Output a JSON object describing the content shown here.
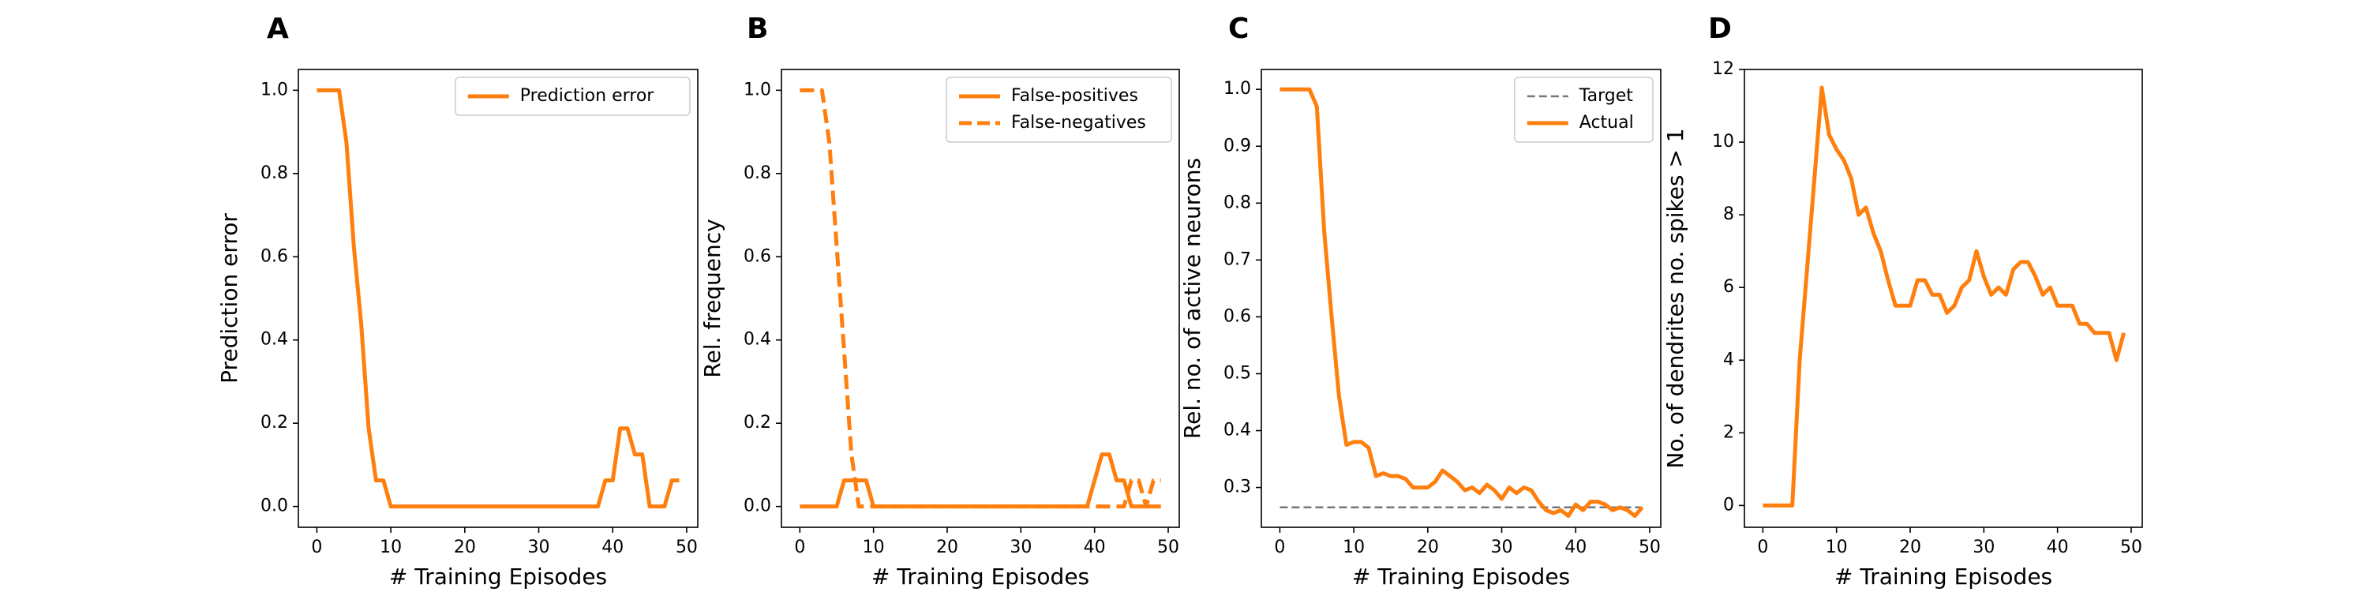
{
  "chart_data": [
    {
      "type": "line",
      "panel": "A",
      "xlabel": "# Training Episodes",
      "ylabel": "Prediction error",
      "xlim": [
        -2.5,
        51.5
      ],
      "ylim": [
        -0.05,
        1.05
      ],
      "xticks": [
        0,
        10,
        20,
        30,
        40,
        50
      ],
      "yticks": [
        0.0,
        0.2,
        0.4,
        0.6,
        0.8,
        1.0
      ],
      "ytick_labels": [
        "0.0",
        "0.2",
        "0.4",
        "0.6",
        "0.8",
        "1.0"
      ],
      "legend": "top-right",
      "series": [
        {
          "name": "Prediction error",
          "color": "#ff7f0e",
          "style": "solid",
          "x": [
            0,
            1,
            2,
            3,
            4,
            5,
            6,
            7,
            8,
            9,
            10,
            11,
            12,
            13,
            14,
            15,
            16,
            17,
            18,
            19,
            20,
            21,
            22,
            23,
            24,
            25,
            26,
            27,
            28,
            29,
            30,
            31,
            32,
            33,
            34,
            35,
            36,
            37,
            38,
            39,
            40,
            41,
            42,
            43,
            44,
            45,
            46,
            47,
            48,
            49
          ],
          "y": [
            1.0,
            1.0,
            1.0,
            1.0,
            0.875,
            0.625,
            0.4375,
            0.1875,
            0.0625,
            0.0625,
            0.0,
            0,
            0,
            0,
            0,
            0,
            0,
            0,
            0,
            0,
            0,
            0,
            0,
            0,
            0,
            0,
            0,
            0,
            0,
            0,
            0,
            0,
            0,
            0,
            0,
            0,
            0,
            0,
            0,
            0.0625,
            0.0625,
            0.1875,
            0.1875,
            0.125,
            0.125,
            0.0,
            0.0,
            0.0,
            0.0625,
            0.0625
          ]
        }
      ]
    },
    {
      "type": "line",
      "panel": "B",
      "xlabel": "# Training Episodes",
      "ylabel": "Rel. frequency",
      "xlim": [
        -2.5,
        51.5
      ],
      "ylim": [
        -0.05,
        1.05
      ],
      "xticks": [
        0,
        10,
        20,
        30,
        40,
        50
      ],
      "yticks": [
        0.0,
        0.2,
        0.4,
        0.6,
        0.8,
        1.0
      ],
      "ytick_labels": [
        "0.0",
        "0.2",
        "0.4",
        "0.6",
        "0.8",
        "1.0"
      ],
      "legend": "top-right",
      "series": [
        {
          "name": "False-positives",
          "color": "#ff7f0e",
          "style": "solid",
          "x": [
            0,
            1,
            2,
            3,
            4,
            5,
            6,
            7,
            8,
            9,
            10,
            11,
            12,
            13,
            14,
            15,
            16,
            17,
            18,
            19,
            20,
            21,
            22,
            23,
            24,
            25,
            26,
            27,
            28,
            29,
            30,
            31,
            32,
            33,
            34,
            35,
            36,
            37,
            38,
            39,
            40,
            41,
            42,
            43,
            44,
            45,
            46,
            47,
            48,
            49
          ],
          "y": [
            0,
            0,
            0,
            0,
            0,
            0,
            0.0625,
            0.0625,
            0.0625,
            0.0625,
            0,
            0,
            0,
            0,
            0,
            0,
            0,
            0,
            0,
            0,
            0,
            0,
            0,
            0,
            0,
            0,
            0,
            0,
            0,
            0,
            0,
            0,
            0,
            0,
            0,
            0,
            0,
            0,
            0,
            0,
            0.0625,
            0.125,
            0.125,
            0.0625,
            0.0625,
            0,
            0,
            0,
            0,
            0
          ]
        },
        {
          "name": "False-negatives",
          "color": "#ff7f0e",
          "style": "dashed",
          "x": [
            0,
            1,
            2,
            3,
            4,
            5,
            6,
            7,
            8,
            9,
            10,
            11,
            12,
            13,
            14,
            15,
            16,
            17,
            18,
            19,
            20,
            21,
            22,
            23,
            24,
            25,
            26,
            27,
            28,
            29,
            30,
            31,
            32,
            33,
            34,
            35,
            36,
            37,
            38,
            39,
            40,
            41,
            42,
            43,
            44,
            45,
            46,
            47,
            48,
            49
          ],
          "y": [
            1.0,
            1.0,
            1.0,
            1.0,
            0.875,
            0.625,
            0.375,
            0.125,
            0.0,
            0.0,
            0,
            0,
            0,
            0,
            0,
            0,
            0,
            0,
            0,
            0,
            0,
            0,
            0,
            0,
            0,
            0,
            0,
            0,
            0,
            0,
            0,
            0,
            0,
            0,
            0,
            0,
            0,
            0,
            0,
            0,
            0,
            0,
            0,
            0,
            0,
            0.0625,
            0.0625,
            0,
            0.0625,
            0.0625
          ]
        }
      ]
    },
    {
      "type": "line",
      "panel": "C",
      "xlabel": "# Training Episodes",
      "ylabel": "Rel. no. of active neurons",
      "xlim": [
        -2.5,
        51.5
      ],
      "ylim": [
        0.23,
        1.035
      ],
      "xticks": [
        0,
        10,
        20,
        30,
        40,
        50
      ],
      "yticks": [
        0.3,
        0.4,
        0.5,
        0.6,
        0.7,
        0.8,
        0.9,
        1.0
      ],
      "ytick_labels": [
        "0.3",
        "0.4",
        "0.5",
        "0.6",
        "0.7",
        "0.8",
        "0.9",
        "1.0"
      ],
      "legend": "top-right",
      "series": [
        {
          "name": "Target",
          "color": "#777777",
          "style": "dashed",
          "x": [
            0,
            49
          ],
          "y": [
            0.265,
            0.265
          ]
        },
        {
          "name": "Actual",
          "color": "#ff7f0e",
          "style": "solid",
          "x": [
            0,
            1,
            2,
            3,
            4,
            5,
            6,
            7,
            8,
            9,
            10,
            11,
            12,
            13,
            14,
            15,
            16,
            17,
            18,
            19,
            20,
            21,
            22,
            23,
            24,
            25,
            26,
            27,
            28,
            29,
            30,
            31,
            32,
            33,
            34,
            35,
            36,
            37,
            38,
            39,
            40,
            41,
            42,
            43,
            44,
            45,
            46,
            47,
            48,
            49
          ],
          "y": [
            1.0,
            1.0,
            1.0,
            1.0,
            1.0,
            0.97,
            0.75,
            0.6,
            0.46,
            0.375,
            0.38,
            0.38,
            0.37,
            0.32,
            0.325,
            0.32,
            0.32,
            0.315,
            0.3,
            0.3,
            0.3,
            0.31,
            0.33,
            0.32,
            0.31,
            0.295,
            0.3,
            0.29,
            0.305,
            0.295,
            0.28,
            0.3,
            0.29,
            0.3,
            0.295,
            0.275,
            0.26,
            0.255,
            0.26,
            0.25,
            0.27,
            0.26,
            0.275,
            0.275,
            0.27,
            0.26,
            0.265,
            0.26,
            0.25,
            0.265
          ]
        }
      ]
    },
    {
      "type": "line",
      "panel": "D",
      "xlabel": "# Training Episodes",
      "ylabel": "No. of dendrites no. spikes > 1",
      "xlim": [
        -2.5,
        51.5
      ],
      "ylim": [
        -0.6,
        12.0
      ],
      "xticks": [
        0,
        10,
        20,
        30,
        40,
        50
      ],
      "yticks": [
        0,
        2,
        4,
        6,
        8,
        10,
        12
      ],
      "ytick_labels": [
        "0",
        "2",
        "4",
        "6",
        "8",
        "10",
        "12"
      ],
      "legend": "none",
      "series": [
        {
          "color": "#ff7f0e",
          "style": "solid",
          "x": [
            0,
            1,
            2,
            3,
            4,
            5,
            6,
            7,
            8,
            9,
            10,
            11,
            12,
            13,
            14,
            15,
            16,
            17,
            18,
            19,
            20,
            21,
            22,
            23,
            24,
            25,
            26,
            27,
            28,
            29,
            30,
            31,
            32,
            33,
            34,
            35,
            36,
            37,
            38,
            39,
            40,
            41,
            42,
            43,
            44,
            45,
            46,
            47,
            48,
            49
          ],
          "y": [
            0,
            0,
            0,
            0,
            0,
            4.0,
            6.5,
            9.0,
            11.5,
            10.2,
            9.8,
            9.5,
            9.0,
            8.0,
            8.2,
            7.5,
            7.0,
            6.2,
            5.5,
            5.5,
            5.5,
            6.2,
            6.2,
            5.8,
            5.8,
            5.3,
            5.5,
            6.0,
            6.2,
            7.0,
            6.3,
            5.8,
            6.0,
            5.8,
            6.5,
            6.7,
            6.7,
            6.3,
            5.8,
            6.0,
            5.5,
            5.5,
            5.5,
            5.0,
            5.0,
            4.75,
            4.75,
            4.75,
            4.0,
            4.75
          ]
        }
      ]
    }
  ]
}
